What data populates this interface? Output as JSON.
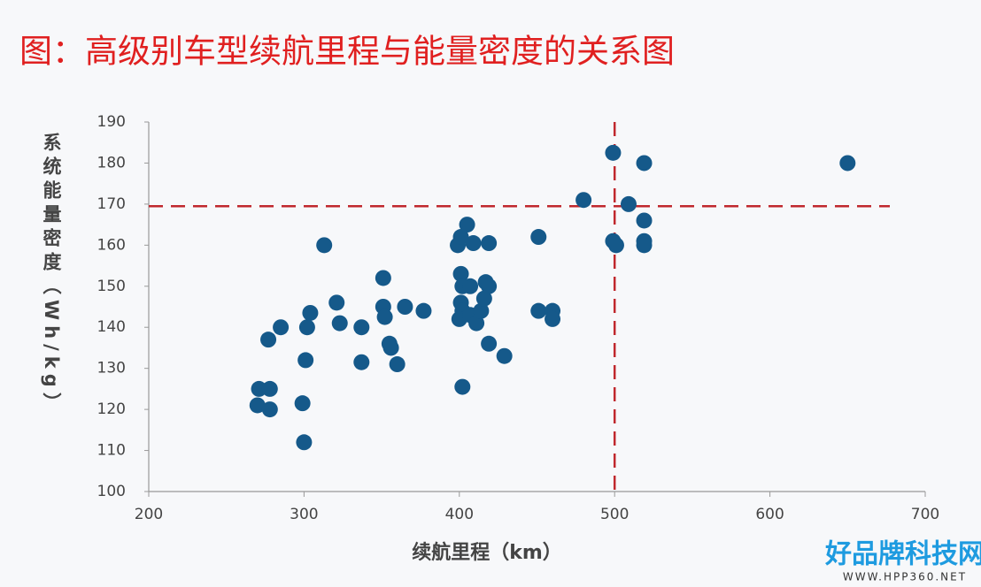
{
  "chart_data": {
    "type": "scatter",
    "title": "图：高级别车型续航里程与能量密度的关系图",
    "x_label": "续航里程（km）",
    "y_label": "系统能量密度（Wh/kg）",
    "color": "#15598a",
    "x": [
      271,
      278,
      270,
      278,
      277,
      285,
      299,
      300,
      301,
      302,
      304,
      313,
      321,
      323,
      337,
      337,
      351,
      351,
      352,
      355,
      356,
      360,
      365,
      377,
      399,
      401,
      405,
      409,
      419,
      401,
      402,
      407,
      417,
      419,
      401,
      402,
      400,
      407,
      411,
      414,
      416,
      402,
      419,
      429,
      451,
      451,
      460,
      460,
      480,
      499,
      499,
      501,
      509,
      519,
      519,
      519,
      519,
      650
    ],
    "values": [
      125,
      125,
      121,
      120,
      137,
      140,
      121.5,
      112,
      132,
      140,
      143.5,
      160,
      146,
      141,
      140,
      131.5,
      152,
      145,
      142.5,
      136,
      135,
      131,
      145,
      144,
      160,
      162,
      165,
      160.5,
      160.5,
      153,
      150,
      150,
      151,
      150,
      146,
      144,
      142,
      143,
      141,
      144,
      147,
      125.5,
      136,
      133,
      162,
      144,
      144,
      142,
      171,
      182.5,
      161,
      160,
      170,
      180,
      166,
      161,
      160,
      180
    ],
    "xlim": [
      200,
      700
    ],
    "xticks": [
      200,
      300,
      400,
      500,
      600,
      700
    ],
    "ylim": [
      100,
      190
    ],
    "yticks": [
      100,
      110,
      120,
      130,
      140,
      150,
      160,
      170,
      180,
      190
    ],
    "reference_lines": {
      "x": [
        500
      ],
      "y": [
        169.5
      ],
      "color": "#c0282d"
    }
  },
  "watermark": {
    "name": "好品牌科技网",
    "url": "WWW.HPP360.NET"
  }
}
